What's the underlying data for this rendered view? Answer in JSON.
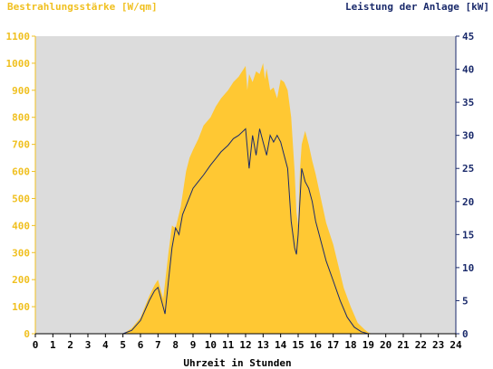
{
  "chart_data": {
    "type": "area",
    "left_axis_title": "Bestrahlungsstärke [W/qm]",
    "right_axis_title": "Leistung der Anlage [kW]",
    "xlabel": "Uhrzeit in Stunden",
    "xlim": [
      0,
      24
    ],
    "ylim_left": [
      0,
      1100
    ],
    "ylim_right": [
      0,
      45
    ],
    "x_ticks": [
      "0",
      "1",
      "2",
      "3",
      "4",
      "5",
      "6",
      "7",
      "8",
      "9",
      "10",
      "11",
      "12",
      "13",
      "14",
      "15",
      "16",
      "17",
      "18",
      "19",
      "20",
      "21",
      "22",
      "23",
      "24"
    ],
    "y_left_ticks": [
      "0",
      "100",
      "200",
      "300",
      "400",
      "500",
      "600",
      "700",
      "800",
      "900",
      "1000",
      "1100"
    ],
    "y_right_ticks": [
      "0",
      "5",
      "10",
      "15",
      "20",
      "25",
      "30",
      "35",
      "40",
      "45"
    ],
    "grid": false,
    "colors": {
      "plot_background": "#dcdcdc",
      "irradiance_fill": "#ffc833",
      "left_axis": "#f0c020",
      "right_axis": "#1a2a6b",
      "power_line": "#1a2a6b"
    },
    "series": [
      {
        "name": "Bestrahlungsstärke",
        "axis": "left",
        "style": "area",
        "x": [
          0,
          5.0,
          5.5,
          6.0,
          6.5,
          6.8,
          7.0,
          7.3,
          7.6,
          7.8,
          8.0,
          8.3,
          8.6,
          8.8,
          9.0,
          9.3,
          9.6,
          10.0,
          10.3,
          10.6,
          11.0,
          11.3,
          11.6,
          11.9,
          12.0,
          12.1,
          12.2,
          12.4,
          12.6,
          12.8,
          13.0,
          13.1,
          13.2,
          13.4,
          13.6,
          13.8,
          14.0,
          14.2,
          14.4,
          14.6,
          14.8,
          14.9,
          15.0,
          15.1,
          15.2,
          15.4,
          15.6,
          15.8,
          16.0,
          16.3,
          16.6,
          17.0,
          17.3,
          17.6,
          18.0,
          18.4,
          18.8,
          19.0,
          19.2,
          19.5,
          20.0,
          24
        ],
        "y": [
          0,
          0,
          20,
          60,
          140,
          180,
          200,
          130,
          300,
          400,
          390,
          470,
          600,
          650,
          680,
          720,
          770,
          800,
          840,
          870,
          900,
          930,
          950,
          980,
          990,
          900,
          960,
          930,
          970,
          960,
          1000,
          940,
          980,
          900,
          910,
          870,
          940,
          930,
          900,
          800,
          600,
          450,
          400,
          600,
          700,
          750,
          700,
          640,
          590,
          500,
          410,
          330,
          250,
          170,
          100,
          40,
          15,
          5,
          0,
          0,
          0,
          0
        ]
      },
      {
        "name": "Leistung der Anlage",
        "axis": "right",
        "style": "line",
        "x": [
          0,
          5.0,
          5.5,
          6.0,
          6.5,
          6.8,
          7.0,
          7.2,
          7.4,
          7.6,
          7.8,
          8.0,
          8.2,
          8.4,
          8.7,
          9.0,
          9.3,
          9.6,
          10.0,
          10.3,
          10.6,
          11.0,
          11.3,
          11.6,
          12.0,
          12.2,
          12.4,
          12.6,
          12.8,
          13.0,
          13.2,
          13.4,
          13.6,
          13.8,
          14.0,
          14.2,
          14.4,
          14.6,
          14.8,
          14.9,
          15.0,
          15.1,
          15.2,
          15.4,
          15.6,
          15.8,
          16.0,
          16.3,
          16.6,
          17.0,
          17.4,
          17.8,
          18.2,
          18.6,
          19.0,
          19.3,
          19.6,
          20.0,
          24
        ],
        "y": [
          0,
          0,
          0.5,
          2,
          5,
          6.5,
          7,
          5,
          3,
          8,
          13,
          16,
          15,
          18,
          20,
          22,
          23,
          24,
          25.5,
          26.5,
          27.5,
          28.5,
          29.5,
          30,
          31,
          25,
          30,
          27,
          31,
          29,
          27,
          30,
          29,
          30,
          29,
          27,
          25,
          17,
          13,
          12,
          15,
          20,
          25,
          23,
          22,
          20,
          17,
          14,
          11,
          8,
          5,
          2.5,
          1,
          0.3,
          0,
          0,
          0,
          0,
          0
        ]
      }
    ]
  }
}
